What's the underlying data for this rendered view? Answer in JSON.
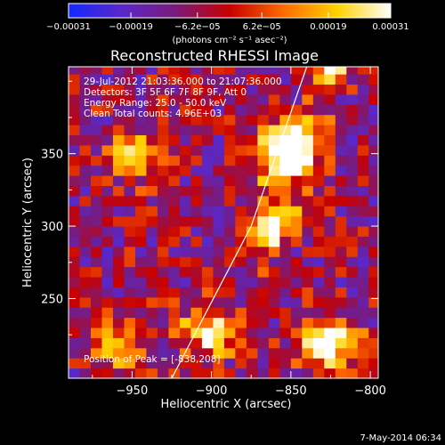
{
  "chart_data": {
    "type": "heatmap",
    "title": "Reconstructed RHESSI Image",
    "xlabel": "Heliocentric X (arcsec)",
    "ylabel": "Heliocentric Y (arcsec)",
    "xlim": [
      -990,
      -795
    ],
    "ylim": [
      195,
      410
    ],
    "xticks": [
      -950,
      -900,
      -850,
      -800
    ],
    "xtick_labels": [
      "−950",
      "−900",
      "−850",
      "−800"
    ],
    "yticks": [
      250,
      300,
      350
    ],
    "ytick_labels": [
      "250",
      "300",
      "350"
    ],
    "colorbar": {
      "ticks": [
        -0.00031,
        -0.00019,
        -6.2e-05,
        6.2e-05,
        0.00019,
        0.00031
      ],
      "tick_labels": [
        "−0.00031",
        "−0.00019",
        "−6.2e−05",
        "6.2e−05",
        "0.00019",
        "0.00031"
      ],
      "units": "(photons cm⁻² s⁻¹ asec⁻²)",
      "range": [
        -0.00031,
        0.00031
      ],
      "colors": [
        "#1428ff",
        "#5a28c8",
        "#7a1a7a",
        "#c80000",
        "#ff6a00",
        "#ffd200",
        "#ffffff"
      ]
    },
    "annotations": [
      "29-Jul-2012 21:03:36.000 to 21:07:36.000",
      "Detectors: 3F 5F 6F 7F 8F 9F, Att 0",
      "Energy Range: 25.0 - 50.0 keV",
      "Clean     Total counts: 4.96E+03"
    ],
    "peak_label": "Position of Peak = [-838,208]",
    "limb_line": {
      "x": [
        -925,
        -875,
        -840
      ],
      "y": [
        195,
        300,
        410
      ]
    },
    "hotspots": [
      {
        "x": -860,
        "y": 345,
        "v": 0.95
      },
      {
        "x": -830,
        "y": 215,
        "v": 1.0
      },
      {
        "x": -905,
        "y": 225,
        "v": 0.75
      },
      {
        "x": -950,
        "y": 345,
        "v": 0.55
      },
      {
        "x": -960,
        "y": 215,
        "v": 0.5
      }
    ]
  },
  "footer": {
    "date": "7-May-2014 06:34"
  }
}
